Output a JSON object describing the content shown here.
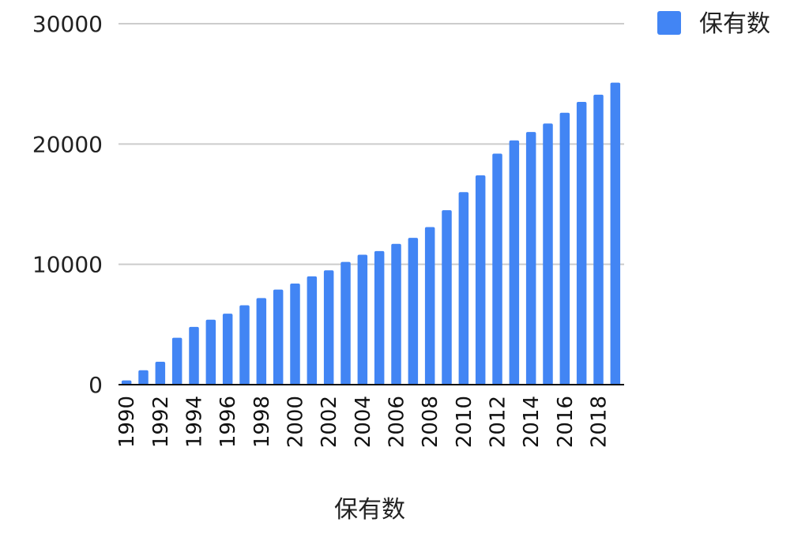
{
  "chart_data": {
    "type": "bar",
    "title": "",
    "xlabel": "保有数",
    "ylabel": "",
    "ylim": [
      0,
      30000
    ],
    "yticks": [
      "0",
      "10000",
      "20000",
      "30000"
    ],
    "grid": true,
    "legend_position": "top-right",
    "bar_color": "#4285F4",
    "categories": [
      "1990",
      "1991",
      "1992",
      "1993",
      "1994",
      "1995",
      "1996",
      "1997",
      "1998",
      "1999",
      "2000",
      "2001",
      "2002",
      "2003",
      "2004",
      "2005",
      "2006",
      "2007",
      "2008",
      "2009",
      "2010",
      "2011",
      "2012",
      "2013",
      "2014",
      "2015",
      "2016",
      "2017",
      "2018",
      "2019"
    ],
    "xtick_labels": [
      "1990",
      "",
      "1992",
      "",
      "1994",
      "",
      "1996",
      "",
      "1998",
      "",
      "2000",
      "",
      "2002",
      "",
      "2004",
      "",
      "2006",
      "",
      "2008",
      "",
      "2010",
      "",
      "2012",
      "",
      "2014",
      "",
      "2016",
      "",
      "2018",
      ""
    ],
    "series": [
      {
        "name": "保有数",
        "values": [
          350,
          1200,
          1900,
          3900,
          4800,
          5400,
          5900,
          6600,
          7200,
          7900,
          8400,
          9000,
          9500,
          10200,
          10800,
          11100,
          11700,
          12200,
          13100,
          14500,
          16000,
          17400,
          19200,
          20300,
          21000,
          21700,
          22600,
          23500,
          24100,
          25100
        ]
      }
    ]
  }
}
